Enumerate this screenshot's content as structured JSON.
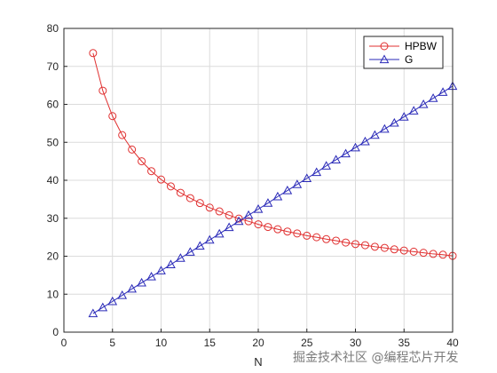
{
  "chart_data": {
    "type": "line",
    "title": "",
    "xlabel": "N",
    "ylabel": "",
    "xlim": [
      0,
      40
    ],
    "ylim": [
      0,
      80
    ],
    "xticks": [
      0,
      5,
      10,
      15,
      20,
      25,
      30,
      35,
      40
    ],
    "yticks": [
      0,
      10,
      20,
      30,
      40,
      50,
      60,
      70,
      80
    ],
    "grid": true,
    "legend_position": "top-right",
    "x": [
      3,
      4,
      5,
      6,
      7,
      8,
      9,
      10,
      11,
      12,
      13,
      14,
      15,
      16,
      17,
      18,
      19,
      20,
      21,
      22,
      23,
      24,
      25,
      26,
      27,
      28,
      29,
      30,
      31,
      32,
      33,
      34,
      35,
      36,
      37,
      38,
      39,
      40
    ],
    "series": [
      {
        "name": "HPBW",
        "color": "#e03030",
        "marker": "circle",
        "values": [
          73.5,
          63.6,
          56.9,
          51.9,
          48.1,
          45.0,
          42.4,
          40.2,
          38.4,
          36.7,
          35.3,
          34.0,
          32.8,
          31.8,
          30.8,
          29.9,
          29.2,
          28.4,
          27.7,
          27.1,
          26.5,
          26.0,
          25.4,
          25.0,
          24.5,
          24.1,
          23.6,
          23.2,
          22.9,
          22.5,
          22.2,
          21.8,
          21.5,
          21.2,
          20.9,
          20.6,
          20.4,
          20.1
        ]
      },
      {
        "name": "G",
        "color": "#2a2ab8",
        "marker": "triangle",
        "values": [
          4.9,
          6.5,
          8.1,
          9.7,
          11.4,
          13.0,
          14.6,
          16.2,
          17.8,
          19.5,
          21.1,
          22.7,
          24.3,
          25.9,
          27.6,
          29.2,
          30.8,
          32.4,
          34.0,
          35.7,
          37.3,
          38.9,
          40.5,
          42.1,
          43.8,
          45.4,
          47.0,
          48.6,
          50.2,
          51.9,
          53.5,
          55.1,
          56.7,
          58.3,
          60.0,
          61.6,
          63.2,
          64.8
        ]
      }
    ]
  },
  "watermark": "掘金技术社区 @编程芯片开发"
}
